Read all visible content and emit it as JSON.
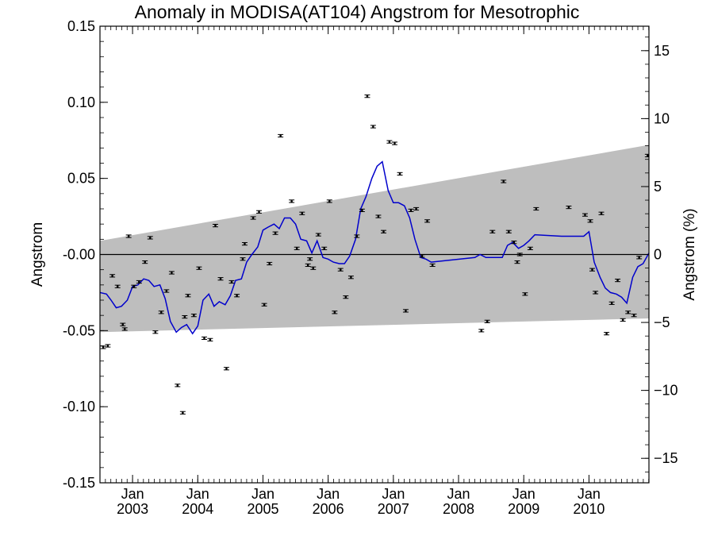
{
  "chart_data": {
    "type": "scatter",
    "title": "Anomaly in MODISA(AT104) Angstrom for Mesotrophic",
    "ylabel": "Angstrom",
    "y2label": "Angstrom (%)",
    "xlabel": "",
    "x_range": [
      2002.5,
      2010.92
    ],
    "ylim": [
      -0.15,
      0.15
    ],
    "y2lim": [
      -16.8,
      16.8
    ],
    "y_ticks": [
      0.15,
      0.1,
      0.05,
      -0.0,
      -0.05,
      -0.1,
      -0.15
    ],
    "y_tick_labels": [
      "0.15",
      "0.10",
      "0.05",
      "-0.00",
      "-0.05",
      "-0.10",
      "-0.15"
    ],
    "y2_ticks": [
      15,
      10,
      5,
      0,
      -5,
      -10,
      -15
    ],
    "y2_tick_labels": [
      "15",
      "10",
      "5",
      "0",
      "−5",
      "−10",
      "−15"
    ],
    "x_ticks": [
      {
        "x": 2003.0,
        "month": "Jan",
        "year": "2003"
      },
      {
        "x": 2004.0,
        "month": "Jan",
        "year": "2004"
      },
      {
        "x": 2005.0,
        "month": "Jan",
        "year": "2005"
      },
      {
        "x": 2006.0,
        "month": "Jan",
        "year": "2006"
      },
      {
        "x": 2007.0,
        "month": "Jan",
        "year": "2007"
      },
      {
        "x": 2008.0,
        "month": "Jan",
        "year": "2008"
      },
      {
        "x": 2009.0,
        "month": "Jan",
        "year": "2009"
      },
      {
        "x": 2010.0,
        "month": "Jan",
        "year": "2010"
      }
    ],
    "reference_line": 0,
    "band": {
      "color": "#bebebe",
      "upper": [
        [
          2002.5,
          0.009
        ],
        [
          2010.92,
          0.072
        ]
      ],
      "lower": [
        [
          2002.5,
          -0.051
        ],
        [
          2010.92,
          -0.042
        ]
      ]
    },
    "series": [
      {
        "type": "points_with_errorbars",
        "color": "#000000",
        "points": [
          [
            2002.55,
            -0.061
          ],
          [
            2002.62,
            -0.06
          ],
          [
            2002.69,
            -0.014
          ],
          [
            2002.77,
            -0.021
          ],
          [
            2002.85,
            -0.046
          ],
          [
            2002.88,
            -0.049
          ],
          [
            2002.94,
            0.012
          ],
          [
            2003.02,
            -0.021
          ],
          [
            2003.1,
            -0.018
          ],
          [
            2003.19,
            -0.005
          ],
          [
            2003.27,
            0.011
          ],
          [
            2003.35,
            -0.051
          ],
          [
            2003.44,
            -0.038
          ],
          [
            2003.52,
            -0.024
          ],
          [
            2003.6,
            -0.012
          ],
          [
            2003.69,
            -0.086
          ],
          [
            2003.77,
            -0.104
          ],
          [
            2003.8,
            -0.041
          ],
          [
            2003.85,
            -0.027
          ],
          [
            2003.94,
            -0.04
          ],
          [
            2004.02,
            -0.009
          ],
          [
            2004.1,
            -0.055
          ],
          [
            2004.19,
            -0.056
          ],
          [
            2004.27,
            0.019
          ],
          [
            2004.35,
            -0.016
          ],
          [
            2004.44,
            -0.075
          ],
          [
            2004.52,
            -0.018
          ],
          [
            2004.6,
            -0.027
          ],
          [
            2004.69,
            -0.003
          ],
          [
            2004.72,
            0.007
          ],
          [
            2004.85,
            0.024
          ],
          [
            2004.94,
            0.028
          ],
          [
            2005.02,
            -0.033
          ],
          [
            2005.1,
            -0.006
          ],
          [
            2005.19,
            0.014
          ],
          [
            2005.27,
            0.078
          ],
          [
            2005.44,
            0.035
          ],
          [
            2005.52,
            0.004
          ],
          [
            2005.6,
            0.027
          ],
          [
            2005.69,
            -0.007
          ],
          [
            2005.72,
            -0.003
          ],
          [
            2005.77,
            -0.009
          ],
          [
            2005.85,
            0.013
          ],
          [
            2005.94,
            0.004
          ],
          [
            2006.02,
            0.035
          ],
          [
            2006.1,
            -0.038
          ],
          [
            2006.19,
            -0.01
          ],
          [
            2006.27,
            -0.028
          ],
          [
            2006.35,
            -0.015
          ],
          [
            2006.44,
            0.012
          ],
          [
            2006.52,
            0.029
          ],
          [
            2006.6,
            0.104
          ],
          [
            2006.69,
            0.084
          ],
          [
            2006.77,
            0.025
          ],
          [
            2006.85,
            0.015
          ],
          [
            2006.94,
            0.074
          ],
          [
            2007.02,
            0.073
          ],
          [
            2007.1,
            0.053
          ],
          [
            2007.19,
            -0.037
          ],
          [
            2007.27,
            0.029
          ],
          [
            2007.35,
            0.03
          ],
          [
            2007.44,
            -0.001
          ],
          [
            2007.52,
            0.022
          ],
          [
            2007.6,
            -0.007
          ],
          [
            2008.35,
            -0.05
          ],
          [
            2008.44,
            -0.044
          ],
          [
            2008.52,
            0.015
          ],
          [
            2008.69,
            0.048
          ],
          [
            2008.77,
            0.015
          ],
          [
            2008.85,
            0.008
          ],
          [
            2008.9,
            -0.005
          ],
          [
            2008.94,
            0.0
          ],
          [
            2009.02,
            -0.026
          ],
          [
            2009.1,
            0.004
          ],
          [
            2009.19,
            0.03
          ],
          [
            2009.69,
            0.031
          ],
          [
            2009.94,
            0.026
          ],
          [
            2010.02,
            0.022
          ],
          [
            2010.05,
            -0.01
          ],
          [
            2010.1,
            -0.025
          ],
          [
            2010.19,
            0.027
          ],
          [
            2010.27,
            -0.052
          ],
          [
            2010.35,
            -0.032
          ],
          [
            2010.44,
            -0.017
          ],
          [
            2010.52,
            -0.043
          ],
          [
            2010.6,
            -0.038
          ],
          [
            2010.69,
            -0.04
          ],
          [
            2010.77,
            -0.002
          ],
          [
            2010.9,
            0.065
          ]
        ]
      },
      {
        "type": "line",
        "color": "#0000cc",
        "points": [
          [
            2002.5,
            -0.025
          ],
          [
            2002.6,
            -0.026
          ],
          [
            2002.67,
            -0.03
          ],
          [
            2002.75,
            -0.035
          ],
          [
            2002.83,
            -0.034
          ],
          [
            2002.92,
            -0.03
          ],
          [
            2003.0,
            -0.021
          ],
          [
            2003.08,
            -0.02
          ],
          [
            2003.17,
            -0.016
          ],
          [
            2003.25,
            -0.017
          ],
          [
            2003.33,
            -0.021
          ],
          [
            2003.42,
            -0.02
          ],
          [
            2003.5,
            -0.029
          ],
          [
            2003.58,
            -0.044
          ],
          [
            2003.67,
            -0.051
          ],
          [
            2003.75,
            -0.048
          ],
          [
            2003.83,
            -0.046
          ],
          [
            2003.92,
            -0.052
          ],
          [
            2004.0,
            -0.047
          ],
          [
            2004.08,
            -0.03
          ],
          [
            2004.17,
            -0.026
          ],
          [
            2004.25,
            -0.034
          ],
          [
            2004.33,
            -0.031
          ],
          [
            2004.42,
            -0.033
          ],
          [
            2004.5,
            -0.027
          ],
          [
            2004.58,
            -0.017
          ],
          [
            2004.67,
            -0.016
          ],
          [
            2004.75,
            -0.005
          ],
          [
            2004.83,
            0.0
          ],
          [
            2004.92,
            0.005
          ],
          [
            2005.0,
            0.016
          ],
          [
            2005.08,
            0.018
          ],
          [
            2005.17,
            0.02
          ],
          [
            2005.25,
            0.017
          ],
          [
            2005.33,
            0.024
          ],
          [
            2005.42,
            0.024
          ],
          [
            2005.5,
            0.02
          ],
          [
            2005.58,
            0.01
          ],
          [
            2005.67,
            0.009
          ],
          [
            2005.75,
            0.001
          ],
          [
            2005.83,
            0.009
          ],
          [
            2005.92,
            -0.002
          ],
          [
            2006.0,
            -0.003
          ],
          [
            2006.08,
            -0.005
          ],
          [
            2006.17,
            -0.006
          ],
          [
            2006.25,
            -0.006
          ],
          [
            2006.33,
            -0.001
          ],
          [
            2006.42,
            0.01
          ],
          [
            2006.5,
            0.03
          ],
          [
            2006.58,
            0.038
          ],
          [
            2006.67,
            0.05
          ],
          [
            2006.75,
            0.058
          ],
          [
            2006.83,
            0.061
          ],
          [
            2006.92,
            0.042
          ],
          [
            2007.0,
            0.034
          ],
          [
            2007.08,
            0.034
          ],
          [
            2007.17,
            0.032
          ],
          [
            2007.25,
            0.024
          ],
          [
            2007.33,
            0.01
          ],
          [
            2007.42,
            -0.002
          ],
          [
            2007.5,
            -0.003
          ],
          [
            2007.58,
            -0.005
          ],
          [
            2008.25,
            -0.002
          ],
          [
            2008.33,
            0.0
          ],
          [
            2008.42,
            -0.002
          ],
          [
            2008.67,
            -0.002
          ],
          [
            2008.75,
            0.006
          ],
          [
            2008.83,
            0.008
          ],
          [
            2008.92,
            0.004
          ],
          [
            2009.0,
            0.006
          ],
          [
            2009.08,
            0.009
          ],
          [
            2009.17,
            0.013
          ],
          [
            2009.58,
            0.012
          ],
          [
            2009.67,
            0.012
          ],
          [
            2009.92,
            0.012
          ],
          [
            2010.0,
            0.015
          ],
          [
            2010.08,
            -0.005
          ],
          [
            2010.17,
            -0.015
          ],
          [
            2010.25,
            -0.022
          ],
          [
            2010.33,
            -0.025
          ],
          [
            2010.42,
            -0.026
          ],
          [
            2010.5,
            -0.028
          ],
          [
            2010.58,
            -0.032
          ],
          [
            2010.67,
            -0.015
          ],
          [
            2010.75,
            -0.008
          ],
          [
            2010.83,
            -0.006
          ],
          [
            2010.92,
            0.001
          ]
        ]
      }
    ]
  }
}
